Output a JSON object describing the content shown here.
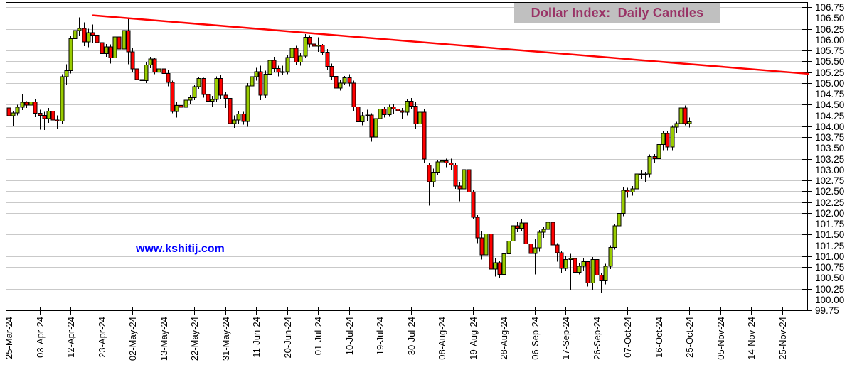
{
  "title": {
    "text": "Dollar Index:  Daily Candles",
    "bg_color": "#C0C0C0",
    "text_color": "#993366"
  },
  "watermark": {
    "text": "www.kshitij.com",
    "color": "#0000FF"
  },
  "chart_data": {
    "type": "candlestick",
    "title": "Dollar Index: Daily Candles",
    "xlabel": "",
    "ylabel": "",
    "ylim": [
      99.75,
      106.75
    ],
    "ytick_step": 0.25,
    "y_axis_side": "right",
    "grid": true,
    "grid_color": "#C9C9C9",
    "up_color": "#99CC00",
    "down_color": "#FF0000",
    "candle_outline": "#000000",
    "ytick_labels": [
      "106.75",
      "106.50",
      "106.25",
      "106.00",
      "105.75",
      "105.50",
      "105.25",
      "105.00",
      "104.75",
      "104.50",
      "104.25",
      "104.00",
      "103.75",
      "103.50",
      "103.25",
      "103.00",
      "102.75",
      "102.50",
      "102.25",
      "102.00",
      "101.75",
      "101.50",
      "101.25",
      "101.00",
      "100.75",
      "100.50",
      "100.25",
      "100.00",
      "99.75"
    ],
    "xtick_labels": [
      "25-Mar-24",
      "03-Apr-24",
      "12-Apr-24",
      "23-Apr-24",
      "02-May-24",
      "13-May-24",
      "22-May-24",
      "31-May-24",
      "11-Jun-24",
      "20-Jun-24",
      "01-Jul-24",
      "10-Jul-24",
      "19-Jul-24",
      "30-Jul-24",
      "08-Aug-24",
      "19-Aug-24",
      "28-Aug-24",
      "06-Sep-24",
      "17-Sep-24",
      "26-Sep-24",
      "07-Oct-24",
      "16-Oct-24",
      "25-Oct-24",
      "05-Nov-24",
      "14-Nov-24",
      "25-Nov-24"
    ],
    "xtick_day_interval": 7,
    "trendline": {
      "color": "#FF0000",
      "width": 2.5,
      "from": {
        "day": 19.1,
        "price": 106.56
      },
      "to": {
        "day": 180.8,
        "price": 105.21
      }
    },
    "candles": [
      [
        "25-Mar-24",
        104.42,
        104.5,
        104.12,
        104.24
      ],
      [
        "26-Mar-24",
        104.24,
        104.36,
        104.0,
        104.31
      ],
      [
        "27-Mar-24",
        104.31,
        104.5,
        104.25,
        104.44
      ],
      [
        "28-Mar-24",
        104.44,
        104.73,
        104.37,
        104.55
      ],
      [
        "29-Mar-24",
        104.55,
        104.58,
        104.42,
        104.49
      ],
      [
        "01-Apr-24",
        104.49,
        104.61,
        104.4,
        104.56
      ],
      [
        "02-Apr-24",
        104.56,
        104.62,
        104.21,
        104.3
      ],
      [
        "03-Apr-24",
        104.3,
        104.38,
        103.92,
        104.25
      ],
      [
        "04-Apr-24",
        104.25,
        104.33,
        103.91,
        104.18
      ],
      [
        "05-Apr-24",
        104.18,
        104.42,
        104.08,
        104.35
      ],
      [
        "08-Apr-24",
        104.35,
        104.44,
        104.06,
        104.14
      ],
      [
        "09-Apr-24",
        104.14,
        104.25,
        103.95,
        104.12
      ],
      [
        "10-Apr-24",
        104.12,
        105.2,
        104.05,
        105.14
      ],
      [
        "11-Apr-24",
        105.14,
        105.43,
        104.95,
        105.28
      ],
      [
        "12-Apr-24",
        105.28,
        106.09,
        105.22,
        106.02
      ],
      [
        "15-Apr-24",
        106.02,
        106.34,
        105.86,
        106.21
      ],
      [
        "16-Apr-24",
        106.21,
        106.51,
        106.08,
        106.26
      ],
      [
        "17-Apr-24",
        106.26,
        106.4,
        105.85,
        105.95
      ],
      [
        "18-Apr-24",
        105.95,
        106.25,
        105.82,
        106.16
      ],
      [
        "19-Apr-24",
        106.16,
        106.35,
        105.93,
        106.1
      ],
      [
        "22-Apr-24",
        106.1,
        106.14,
        105.75,
        105.93
      ],
      [
        "23-Apr-24",
        105.93,
        106.0,
        105.59,
        105.68
      ],
      [
        "24-Apr-24",
        105.68,
        105.9,
        105.6,
        105.83
      ],
      [
        "25-Apr-24",
        105.83,
        105.89,
        105.45,
        105.58
      ],
      [
        "26-Apr-24",
        105.58,
        106.12,
        105.52,
        106.06
      ],
      [
        "29-Apr-24",
        106.06,
        106.1,
        105.62,
        105.78
      ],
      [
        "30-Apr-24",
        105.78,
        106.3,
        105.7,
        106.21
      ],
      [
        "01-May-24",
        106.21,
        106.49,
        105.43,
        105.72
      ],
      [
        "02-May-24",
        105.72,
        105.8,
        105.25,
        105.32
      ],
      [
        "03-May-24",
        105.32,
        105.4,
        104.52,
        105.08
      ],
      [
        "06-May-24",
        105.08,
        105.2,
        104.95,
        105.05
      ],
      [
        "07-May-24",
        105.05,
        105.47,
        105.0,
        105.41
      ],
      [
        "08-May-24",
        105.41,
        105.6,
        105.34,
        105.55
      ],
      [
        "09-May-24",
        105.55,
        105.58,
        105.2,
        105.25
      ],
      [
        "10-May-24",
        105.25,
        105.4,
        105.15,
        105.32
      ],
      [
        "13-May-24",
        105.32,
        105.35,
        105.09,
        105.22
      ],
      [
        "14-May-24",
        105.22,
        105.31,
        104.92,
        105.01
      ],
      [
        "15-May-24",
        105.01,
        105.05,
        104.3,
        104.34
      ],
      [
        "16-May-24",
        104.34,
        104.55,
        104.2,
        104.48
      ],
      [
        "17-May-24",
        104.48,
        104.55,
        104.32,
        104.44
      ],
      [
        "20-May-24",
        104.44,
        104.65,
        104.38,
        104.6
      ],
      [
        "21-May-24",
        104.6,
        104.72,
        104.52,
        104.66
      ],
      [
        "22-May-24",
        104.66,
        104.95,
        104.6,
        104.91
      ],
      [
        "23-May-24",
        104.91,
        105.14,
        104.85,
        105.1
      ],
      [
        "24-May-24",
        105.1,
        105.12,
        104.66,
        104.73
      ],
      [
        "27-May-24",
        104.73,
        104.78,
        104.52,
        104.58
      ],
      [
        "28-May-24",
        104.58,
        104.7,
        104.44,
        104.62
      ],
      [
        "29-May-24",
        104.62,
        105.15,
        104.55,
        105.1
      ],
      [
        "30-May-24",
        105.1,
        105.18,
        104.63,
        104.72
      ],
      [
        "31-May-24",
        104.72,
        104.8,
        104.42,
        104.64
      ],
      [
        "03-Jun-24",
        104.64,
        104.7,
        103.99,
        104.06
      ],
      [
        "04-Jun-24",
        104.06,
        104.25,
        103.96,
        104.14
      ],
      [
        "05-Jun-24",
        104.14,
        104.35,
        104.05,
        104.28
      ],
      [
        "06-Jun-24",
        104.28,
        104.33,
        104.04,
        104.11
      ],
      [
        "07-Jun-24",
        104.11,
        105.0,
        103.99,
        104.93
      ],
      [
        "10-Jun-24",
        104.93,
        105.2,
        104.85,
        105.14
      ],
      [
        "11-Jun-24",
        105.14,
        105.35,
        105.05,
        105.26
      ],
      [
        "12-Jun-24",
        105.26,
        105.4,
        104.6,
        104.72
      ],
      [
        "13-Jun-24",
        104.72,
        105.28,
        104.65,
        105.2
      ],
      [
        "14-Jun-24",
        105.2,
        105.6,
        105.1,
        105.52
      ],
      [
        "17-Jun-24",
        105.52,
        105.6,
        105.26,
        105.33
      ],
      [
        "18-Jun-24",
        105.33,
        105.4,
        105.15,
        105.25
      ],
      [
        "19-Jun-24",
        105.25,
        105.4,
        105.18,
        105.26
      ],
      [
        "20-Jun-24",
        105.26,
        105.65,
        105.2,
        105.59
      ],
      [
        "21-Jun-24",
        105.59,
        105.87,
        105.51,
        105.8
      ],
      [
        "24-Jun-24",
        105.8,
        105.86,
        105.42,
        105.48
      ],
      [
        "25-Jun-24",
        105.48,
        105.7,
        105.4,
        105.62
      ],
      [
        "26-Jun-24",
        105.62,
        106.13,
        105.58,
        106.05
      ],
      [
        "27-Jun-24",
        106.05,
        106.1,
        105.82,
        105.9
      ],
      [
        "28-Jun-24",
        105.9,
        106.2,
        105.75,
        105.85
      ],
      [
        "01-Jul-24",
        105.85,
        106.05,
        105.72,
        105.87
      ],
      [
        "02-Jul-24",
        105.87,
        105.9,
        105.65,
        105.71
      ],
      [
        "03-Jul-24",
        105.71,
        105.78,
        105.3,
        105.38
      ],
      [
        "04-Jul-24",
        105.38,
        105.45,
        105.08,
        105.15
      ],
      [
        "05-Jul-24",
        105.15,
        105.2,
        104.8,
        104.88
      ],
      [
        "08-Jul-24",
        104.88,
        105.08,
        104.82,
        105.0
      ],
      [
        "09-Jul-24",
        105.0,
        105.16,
        104.95,
        105.12
      ],
      [
        "10-Jul-24",
        105.12,
        105.2,
        104.92,
        105.0
      ],
      [
        "11-Jul-24",
        105.0,
        105.05,
        104.36,
        104.45
      ],
      [
        "12-Jul-24",
        104.45,
        104.55,
        104.04,
        104.1
      ],
      [
        "15-Jul-24",
        104.1,
        104.32,
        104.02,
        104.24
      ],
      [
        "16-Jul-24",
        104.24,
        104.38,
        104.12,
        104.26
      ],
      [
        "17-Jul-24",
        104.26,
        104.3,
        103.64,
        103.75
      ],
      [
        "18-Jul-24",
        103.75,
        104.22,
        103.7,
        104.18
      ],
      [
        "19-Jul-24",
        104.18,
        104.45,
        104.1,
        104.4
      ],
      [
        "22-Jul-24",
        104.4,
        104.45,
        104.2,
        104.27
      ],
      [
        "23-Jul-24",
        104.27,
        104.5,
        104.22,
        104.45
      ],
      [
        "24-Jul-24",
        104.45,
        104.52,
        104.28,
        104.4
      ],
      [
        "25-Jul-24",
        104.4,
        104.48,
        104.15,
        104.36
      ],
      [
        "26-Jul-24",
        104.36,
        104.42,
        104.18,
        104.32
      ],
      [
        "29-Jul-24",
        104.32,
        104.62,
        104.25,
        104.58
      ],
      [
        "30-Jul-24",
        104.58,
        104.65,
        104.4,
        104.46
      ],
      [
        "31-Jul-24",
        104.46,
        104.55,
        103.95,
        104.05
      ],
      [
        "01-Aug-24",
        104.05,
        104.45,
        103.97,
        104.32
      ],
      [
        "02-Aug-24",
        104.32,
        104.4,
        103.15,
        103.24
      ],
      [
        "05-Aug-24",
        103.1,
        103.15,
        102.17,
        102.72
      ],
      [
        "06-Aug-24",
        102.72,
        103.02,
        102.6,
        102.94
      ],
      [
        "07-Aug-24",
        102.94,
        103.22,
        102.88,
        103.18
      ],
      [
        "08-Aug-24",
        103.18,
        103.28,
        102.95,
        103.2
      ],
      [
        "09-Aug-24",
        103.2,
        103.25,
        103.05,
        103.15
      ],
      [
        "12-Aug-24",
        103.15,
        103.25,
        103.0,
        103.1
      ],
      [
        "13-Aug-24",
        103.1,
        103.15,
        102.55,
        102.62
      ],
      [
        "14-Aug-24",
        102.62,
        102.72,
        102.27,
        102.55
      ],
      [
        "15-Aug-24",
        102.55,
        103.08,
        102.5,
        103.0
      ],
      [
        "16-Aug-24",
        103.0,
        103.05,
        102.4,
        102.48
      ],
      [
        "19-Aug-24",
        102.48,
        102.52,
        101.85,
        101.9
      ],
      [
        "20-Aug-24",
        101.9,
        101.95,
        101.3,
        101.42
      ],
      [
        "21-Aug-24",
        101.42,
        101.58,
        100.92,
        101.03
      ],
      [
        "22-Aug-24",
        101.03,
        101.58,
        100.98,
        101.51
      ],
      [
        "23-Aug-24",
        101.51,
        101.55,
        100.6,
        100.7
      ],
      [
        "26-Aug-24",
        100.7,
        100.95,
        100.53,
        100.85
      ],
      [
        "27-Aug-24",
        100.85,
        100.9,
        100.5,
        100.58
      ],
      [
        "28-Aug-24",
        100.58,
        101.12,
        100.52,
        101.05
      ],
      [
        "29-Aug-24",
        101.05,
        101.45,
        100.96,
        101.35
      ],
      [
        "30-Aug-24",
        101.35,
        101.75,
        101.28,
        101.7
      ],
      [
        "02-Sep-24",
        101.7,
        101.78,
        101.55,
        101.64
      ],
      [
        "03-Sep-24",
        101.64,
        101.85,
        101.58,
        101.77
      ],
      [
        "04-Sep-24",
        101.77,
        101.8,
        101.2,
        101.28
      ],
      [
        "05-Sep-24",
        101.28,
        101.35,
        100.96,
        101.06
      ],
      [
        "06-Sep-24",
        101.06,
        101.4,
        100.58,
        101.19
      ],
      [
        "09-Sep-24",
        101.19,
        101.6,
        101.1,
        101.55
      ],
      [
        "10-Sep-24",
        101.55,
        101.68,
        101.42,
        101.62
      ],
      [
        "11-Sep-24",
        101.62,
        101.82,
        101.25,
        101.78
      ],
      [
        "12-Sep-24",
        101.78,
        101.85,
        101.18,
        101.26
      ],
      [
        "13-Sep-24",
        101.26,
        101.3,
        100.87,
        101.08
      ],
      [
        "16-Sep-24",
        101.08,
        101.12,
        100.62,
        100.72
      ],
      [
        "17-Sep-24",
        100.72,
        101.0,
        100.65,
        100.92
      ],
      [
        "18-Sep-24",
        100.92,
        101.05,
        100.21,
        100.95
      ],
      [
        "19-Sep-24",
        100.95,
        101.08,
        100.45,
        100.63
      ],
      [
        "20-Sep-24",
        100.63,
        100.85,
        100.58,
        100.77
      ],
      [
        "23-Sep-24",
        100.77,
        100.95,
        100.65,
        100.87
      ],
      [
        "24-Sep-24",
        100.87,
        100.9,
        100.3,
        100.38
      ],
      [
        "25-Sep-24",
        100.38,
        100.98,
        100.22,
        100.92
      ],
      [
        "26-Sep-24",
        100.92,
        100.95,
        100.45,
        100.56
      ],
      [
        "27-Sep-24",
        100.56,
        100.62,
        100.15,
        100.43
      ],
      [
        "30-Sep-24",
        100.43,
        100.82,
        100.35,
        100.77
      ],
      [
        "01-Oct-24",
        100.77,
        101.25,
        100.7,
        101.2
      ],
      [
        "02-Oct-24",
        101.2,
        101.75,
        101.15,
        101.7
      ],
      [
        "03-Oct-24",
        101.7,
        102.05,
        101.62,
        101.99
      ],
      [
        "04-Oct-24",
        101.99,
        102.6,
        101.92,
        102.52
      ],
      [
        "07-Oct-24",
        102.52,
        102.58,
        102.35,
        102.48
      ],
      [
        "08-Oct-24",
        102.48,
        102.62,
        102.4,
        102.55
      ],
      [
        "09-Oct-24",
        102.55,
        102.95,
        102.48,
        102.9
      ],
      [
        "10-Oct-24",
        102.9,
        103.0,
        102.78,
        102.88
      ],
      [
        "11-Oct-24",
        102.88,
        102.95,
        102.72,
        102.9
      ],
      [
        "14-Oct-24",
        102.9,
        103.35,
        102.82,
        103.3
      ],
      [
        "15-Oct-24",
        103.3,
        103.36,
        103.15,
        103.25
      ],
      [
        "16-Oct-24",
        103.25,
        103.62,
        103.18,
        103.58
      ],
      [
        "17-Oct-24",
        103.58,
        103.88,
        103.45,
        103.83
      ],
      [
        "18-Oct-24",
        103.83,
        103.88,
        103.45,
        103.52
      ],
      [
        "21-Oct-24",
        103.52,
        104.02,
        103.45,
        103.98
      ],
      [
        "22-Oct-24",
        103.98,
        104.1,
        103.84,
        104.06
      ],
      [
        "23-Oct-24",
        104.06,
        104.55,
        104.01,
        104.42
      ],
      [
        "24-Oct-24",
        104.42,
        104.48,
        104.02,
        104.06
      ],
      [
        "25-Oct-24",
        104.06,
        104.2,
        103.97,
        104.1
      ]
    ]
  }
}
